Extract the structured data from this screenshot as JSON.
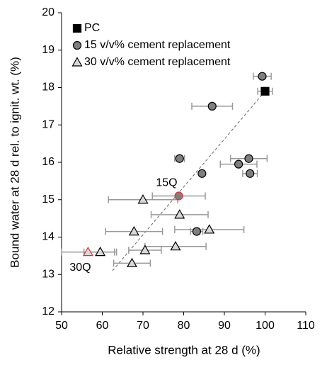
{
  "chart_data": {
    "type": "scatter",
    "xlabel": "Relative strength at 28 d (%)",
    "ylabel": "Bound water at 28 d rel. to ignit. wt. (%)",
    "xlim": [
      50,
      110
    ],
    "xticks": [
      50,
      60,
      70,
      80,
      90,
      100,
      110
    ],
    "ylim": [
      12,
      20
    ],
    "yticks": [
      12,
      13,
      14,
      15,
      16,
      17,
      18,
      19,
      20
    ],
    "grid": false,
    "legend": "upper left",
    "series": [
      {
        "name": "PC",
        "marker": "square",
        "color": "#000000",
        "x": [
          100
        ],
        "values": [
          17.9
        ],
        "xerr": [
          1.8
        ]
      },
      {
        "name": "15 v/v% cement replacement",
        "marker": "circle",
        "color": "#7f7f7f",
        "x": [
          99.3,
          87,
          79,
          96,
          84.5,
          93.5,
          96.3,
          78.8,
          83.2
        ],
        "values": [
          18.3,
          17.5,
          16.1,
          16.1,
          15.7,
          15.95,
          15.7,
          15.1,
          14.15
        ],
        "xerr": [
          2.2,
          5,
          1.2,
          4.5,
          0,
          4.5,
          1.8,
          6.5,
          1.5
        ]
      },
      {
        "name": "30 v/v% cement replacement",
        "marker": "triangle",
        "color": "#d9d9d9",
        "x": [
          70,
          79,
          67.8,
          86.3,
          59.5,
          70.5,
          78,
          67.3,
          56.5
        ],
        "values": [
          15.0,
          14.6,
          14.15,
          14.2,
          13.6,
          13.65,
          13.75,
          13.3,
          13.6
        ],
        "xerr": [
          8.5,
          7,
          7,
          8.5,
          4,
          4,
          7.5,
          4.5,
          6.5
        ]
      }
    ],
    "trendline": {
      "x": [
        62.5,
        100
      ],
      "values": [
        13.1,
        17.9
      ]
    },
    "annotations": [
      {
        "text": "15Q",
        "series": 1,
        "index": 7,
        "color": "#e03030"
      },
      {
        "text": "30Q",
        "series": 2,
        "index": 8,
        "color": "#e03030"
      }
    ]
  }
}
